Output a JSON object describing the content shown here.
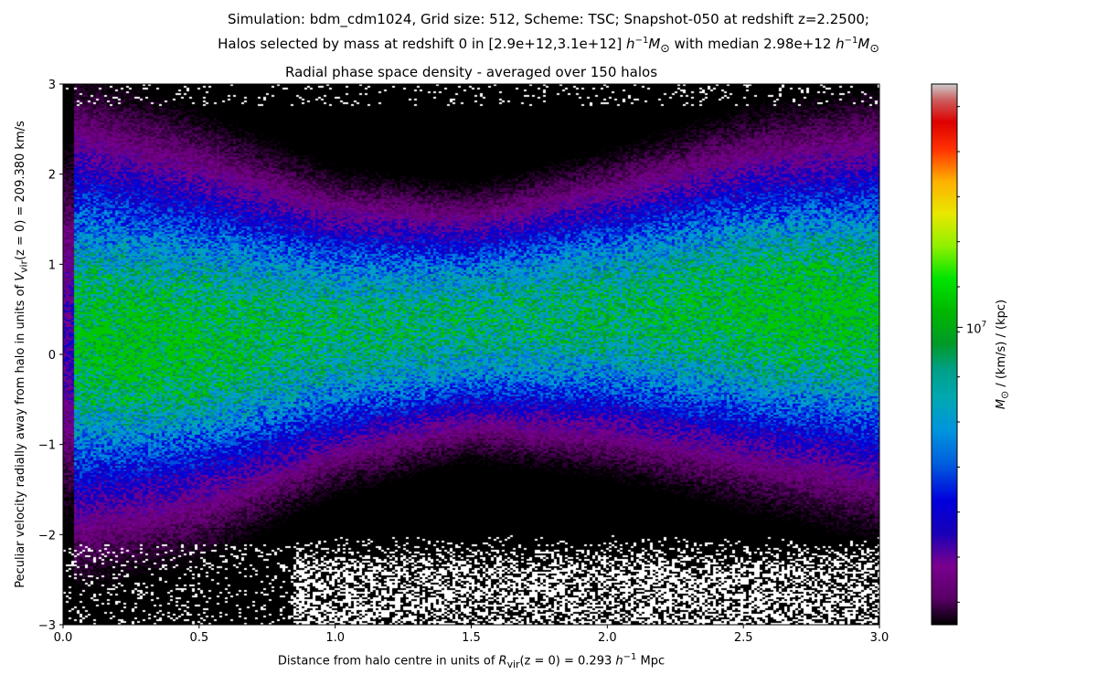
{
  "suptitle": {
    "line1": "Simulation: bdm_cdm1024, Grid size: 512, Scheme: TSC;     Snapshot-050 at redshift z=2.2500;",
    "line2_pre": "Halos selected by mass at redshift 0 in [2.9e+12,3.1e+12] ",
    "line2_unit1": "h",
    "line2_exp1": "−1",
    "line2_unit1b": "M",
    "line2_sub1": "⊙",
    "line2_mid": " with median 2.98e+12 ",
    "line2_unit2": "h",
    "line2_exp2": "−1",
    "line2_unit2b": "M",
    "line2_sub2": "⊙"
  },
  "chart_data": {
    "type": "heatmap",
    "title": "Radial phase space density - averaged over 150 halos",
    "xlabel_pre": "Distance from halo centre in units of  ",
    "xlabel_sym": "R",
    "xlabel_sub": "vir",
    "xlabel_mid": "(z = 0) = 0.293 ",
    "xlabel_h": "h",
    "xlabel_exp": "−1",
    "xlabel_post": " Mpc",
    "ylabel_pre": "Peculiar velocity radially away from halo in units of  ",
    "ylabel_sym": "V",
    "ylabel_sub": "vir",
    "ylabel_post": "(z = 0) = 209.380 km/s",
    "xlim": [
      0.0,
      3.0
    ],
    "ylim": [
      -3,
      3
    ],
    "xticks": [
      0.0,
      0.5,
      1.0,
      1.5,
      2.0,
      2.5,
      3.0
    ],
    "xtick_labels": [
      "0.0",
      "0.5",
      "1.0",
      "1.5",
      "2.0",
      "2.5",
      "3.0"
    ],
    "yticks": [
      -3,
      -2,
      -1,
      0,
      1,
      2,
      3
    ],
    "ytick_labels": [
      "−3",
      "−2",
      "−1",
      "0",
      "1",
      "2",
      "3"
    ],
    "colormap": "nipy_spectral",
    "colorbar": {
      "scale": "log",
      "label_sym": "M",
      "label_sub": "⊙",
      "label_post": " / (km/s) / (kpc)",
      "major_tick_label": "10",
      "major_tick_exp": "7",
      "minor_tick_count": 12
    },
    "density_structure": {
      "band_center_v": [
        0.25,
        0.2,
        0.25,
        0.35,
        0.45,
        0.5,
        0.45
      ],
      "band_center_x": [
        0.0,
        0.5,
        1.0,
        1.5,
        2.0,
        2.5,
        3.0
      ],
      "band_halfwidth_v": [
        2.1,
        1.8,
        1.3,
        1.1,
        1.3,
        1.6,
        1.8
      ],
      "peak_regions": [
        {
          "x": 0.25,
          "v": 0.0,
          "level": "green"
        },
        {
          "x": 2.75,
          "v": 0.5,
          "level": "green"
        }
      ],
      "empty_region_below_v": -2.0
    }
  }
}
